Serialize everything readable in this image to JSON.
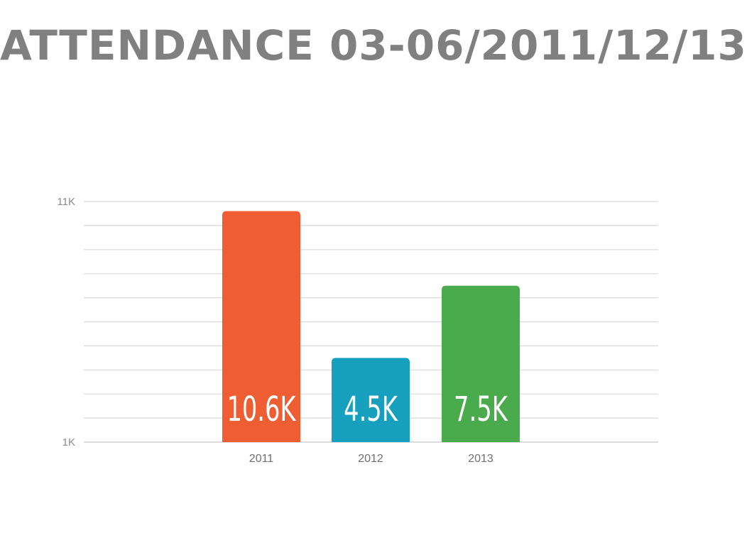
{
  "chart_data": {
    "type": "bar",
    "title": "ATTENDANCE 03-06/2011/12/13",
    "categories": [
      "2011",
      "2012",
      "2013"
    ],
    "values": [
      10.6,
      4.5,
      7.5
    ],
    "value_labels": [
      "10.6K",
      "4.5K",
      "7.5K"
    ],
    "colors": [
      "#ef5e33",
      "#16a0bd",
      "#4aab4d"
    ],
    "ylim": [
      1,
      11
    ],
    "y_ticks": [
      {
        "value": 11,
        "label": "11K"
      },
      {
        "value": 1,
        "label": "1K"
      }
    ],
    "grid": true,
    "grid_step": 1,
    "legend": "none"
  }
}
